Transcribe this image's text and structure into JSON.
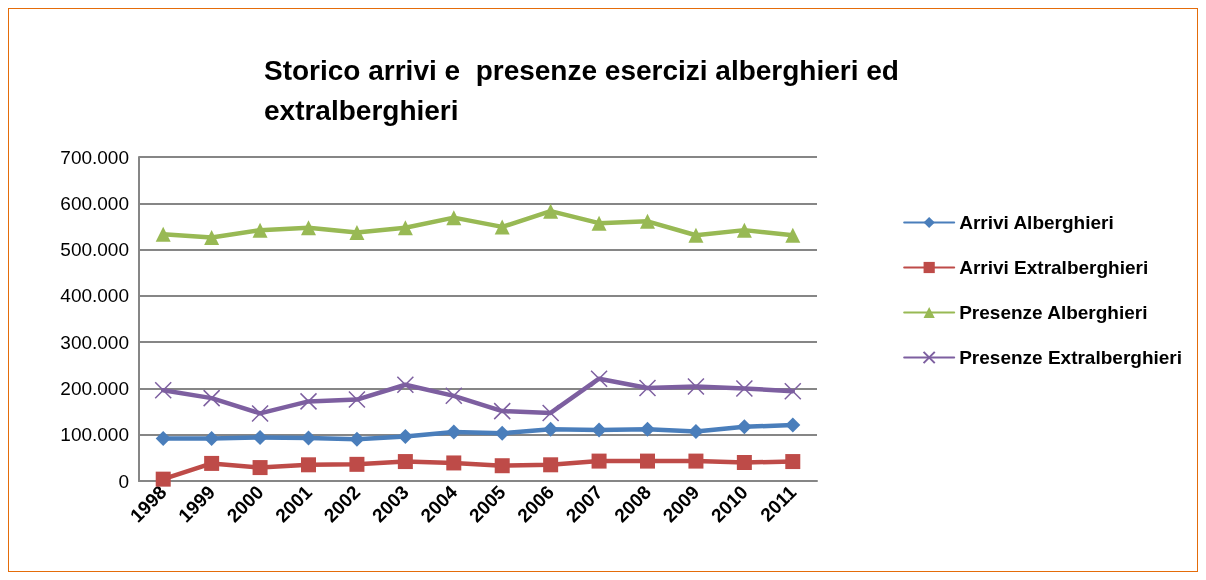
{
  "chart_data": {
    "type": "line",
    "title": "Storico arrivi e  presenze esercizi alberghieri ed extralberghieri",
    "categories": [
      "1998",
      "1999",
      "2000",
      "2001",
      "2002",
      "2003",
      "2004",
      "2005",
      "2006",
      "2007",
      "2008",
      "2009",
      "2010",
      "2011"
    ],
    "series": [
      {
        "name": "Arrivi Alberghieri",
        "color": "#4a7ebb",
        "marker": "diamond",
        "values": [
          92000,
          92000,
          94000,
          93000,
          90000,
          96000,
          106000,
          103000,
          112000,
          110000,
          112000,
          107000,
          117000,
          121000
        ]
      },
      {
        "name": "Arrivi Extralberghieri",
        "color": "#be4b48",
        "marker": "square",
        "values": [
          4000,
          38000,
          29000,
          35000,
          36000,
          42000,
          39000,
          33000,
          35000,
          43000,
          43000,
          43000,
          40000,
          42000
        ]
      },
      {
        "name": "Presenze Alberghieri",
        "color": "#98b954",
        "marker": "triangle",
        "values": [
          533000,
          526000,
          542000,
          547000,
          537000,
          547000,
          569000,
          549000,
          583000,
          557000,
          561000,
          531000,
          542000,
          531000
        ]
      },
      {
        "name": "Presenze Extralberghieri",
        "color": "#7d5fa0",
        "marker": "cross",
        "values": [
          196000,
          179000,
          146000,
          172000,
          176000,
          208000,
          184000,
          151000,
          147000,
          221000,
          201000,
          204000,
          200000,
          194000
        ]
      }
    ],
    "ylim": [
      0,
      700000
    ],
    "yticks": [
      0,
      {
        "value": 100000,
        "label": "100.000"
      },
      {
        "value": 200000,
        "label": "200.000"
      },
      {
        "value": 300000,
        "label": "300.000"
      },
      {
        "value": 400000,
        "label": "400.000"
      },
      {
        "value": 500000,
        "label": "500.000"
      },
      {
        "value": 600000,
        "label": "600.000"
      },
      {
        "value": 700000,
        "label": "700.000"
      }
    ],
    "grid": "y",
    "legend": "right",
    "line_style": "solid"
  }
}
